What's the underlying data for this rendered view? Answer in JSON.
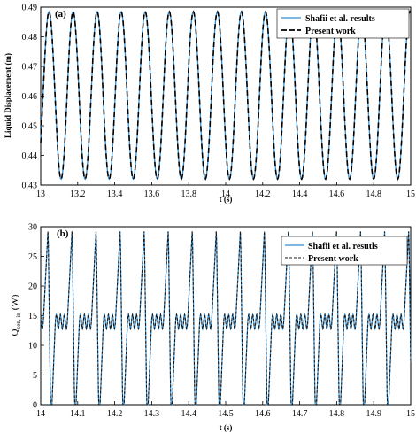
{
  "chart_data": [
    {
      "type": "line",
      "panel_label": "(a)",
      "xlabel": "t (s)",
      "ylabel": "Liquid Displacement (m)",
      "xlim": [
        13,
        15
      ],
      "ylim": [
        0.43,
        0.49
      ],
      "xticks": [
        "13",
        "13.2",
        "13.4",
        "13.6",
        "13.8",
        "14",
        "14.2",
        "14.4",
        "14.6",
        "14.8",
        "15"
      ],
      "yticks": [
        "0.43",
        "0.44",
        "0.45",
        "0.46",
        "0.47",
        "0.48",
        "0.49"
      ],
      "legend_position": "top-right",
      "signal": {
        "min": 0.432,
        "max": 0.4885,
        "period_s": 0.13,
        "first_peak_s": 13.045,
        "samples_per_period": 40
      },
      "series": [
        {
          "name": "Shafii et al. results",
          "style": "solid",
          "color": "#2f8fd6"
        },
        {
          "name": "Present work",
          "style": "dashed",
          "color": "#000000"
        }
      ]
    },
    {
      "type": "line",
      "panel_label": "(b)",
      "xlabel": "t (s)",
      "ylabel_main": "Q",
      "ylabel_sub": "sen, in",
      "ylabel_unit": "(W)",
      "xlim": [
        14,
        15
      ],
      "ylim": [
        0,
        30
      ],
      "xticks": [
        "14",
        "14.1",
        "14.2",
        "14.3",
        "14.4",
        "14.5",
        "14.6",
        "14.7",
        "14.8",
        "14.9",
        "15"
      ],
      "yticks": [
        "0",
        "5",
        "10",
        "15",
        "20",
        "25",
        "30"
      ],
      "legend_position": "top-right",
      "signal": {
        "period_s": 0.065,
        "first_peak_s": 14.02,
        "peak": 29.8,
        "plateau": 14.0,
        "ripple": 1.2,
        "samples_per_period": 60
      },
      "series": [
        {
          "name": "Shafii et al. resutls",
          "style": "solid",
          "color": "#2f8fd6"
        },
        {
          "name": "Present work",
          "style": "dashed",
          "color": "#1a1a1a"
        }
      ]
    }
  ]
}
